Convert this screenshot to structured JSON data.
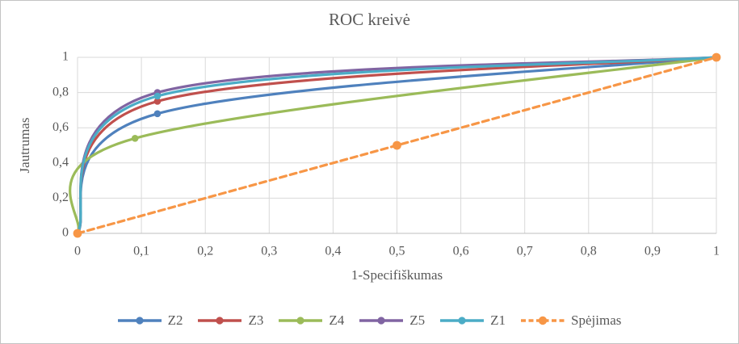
{
  "chart_data": {
    "type": "line",
    "title": "ROC kreivė",
    "xlabel": "1-Specifiškumas",
    "ylabel": "Jautrumas",
    "xlim": [
      0,
      1
    ],
    "ylim": [
      0,
      1
    ],
    "grid": true,
    "legend_position": "bottom",
    "x_ticks": {
      "values": [
        0,
        0.1,
        0.2,
        0.3,
        0.4,
        0.5,
        0.6,
        0.7,
        0.8,
        0.9,
        1
      ],
      "labels": [
        "0",
        "0,1",
        "0,2",
        "0,3",
        "0,4",
        "0,5",
        "0,6",
        "0,7",
        "0,8",
        "0,9",
        "1"
      ]
    },
    "y_ticks": {
      "values": [
        0,
        0.2,
        0.4,
        0.6,
        0.8,
        1
      ],
      "labels": [
        "0",
        "0,2",
        "0,4",
        "0,6",
        "0,8",
        "1"
      ]
    },
    "series": [
      {
        "name": "Z2",
        "color": "#4F81BD",
        "line": "solid",
        "smooth": true,
        "points": [
          [
            0,
            0
          ],
          [
            0.125,
            0.68
          ],
          [
            1,
            1
          ]
        ]
      },
      {
        "name": "Z3",
        "color": "#C0504D",
        "line": "solid",
        "smooth": true,
        "points": [
          [
            0,
            0
          ],
          [
            0.125,
            0.75
          ],
          [
            1,
            1
          ]
        ]
      },
      {
        "name": "Z4",
        "color": "#9BBB59",
        "line": "solid",
        "smooth": true,
        "points": [
          [
            0,
            0
          ],
          [
            0.09,
            0.54
          ],
          [
            1,
            1
          ]
        ]
      },
      {
        "name": "Z5",
        "color": "#8064A2",
        "line": "solid",
        "smooth": true,
        "points": [
          [
            0,
            0
          ],
          [
            0.125,
            0.8
          ],
          [
            1,
            1
          ]
        ]
      },
      {
        "name": "Z1",
        "color": "#4BACC6",
        "line": "solid",
        "smooth": true,
        "points": [
          [
            0,
            0
          ],
          [
            0.125,
            0.78
          ],
          [
            1,
            1
          ]
        ]
      },
      {
        "name": "Spėjimas",
        "color": "#F79646",
        "line": "dashed",
        "smooth": false,
        "points": [
          [
            0,
            0
          ],
          [
            0.5,
            0.5
          ],
          [
            1,
            1
          ]
        ]
      }
    ],
    "colors": {
      "text": "#595959",
      "gridline": "#D9D9D9",
      "axis_line": "#BFBFBF"
    }
  }
}
